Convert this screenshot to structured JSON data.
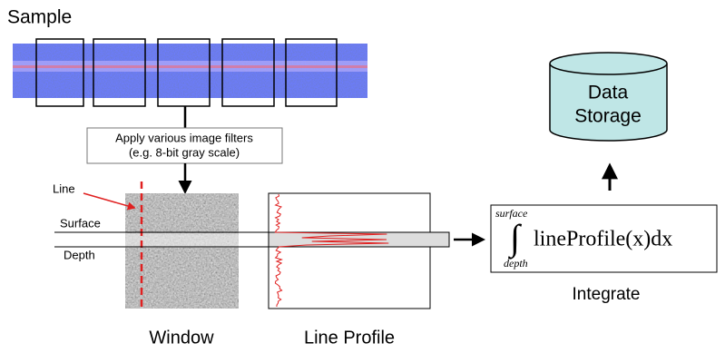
{
  "sample": {
    "title": "Sample"
  },
  "filter_box": {
    "line1": "Apply various image filters",
    "line2": "(e.g. 8-bit gray scale)"
  },
  "window": {
    "line_label": "Line",
    "surface_label": "Surface",
    "depth_label": "Depth",
    "caption": "Window"
  },
  "line_profile": {
    "caption": "Line Profile"
  },
  "formula": {
    "upper": "surface",
    "symbol": "∫",
    "integrand": "lineProfile(x)dx",
    "lower": "depth",
    "caption": "Integrate"
  },
  "storage": {
    "line1": "Data",
    "line2": "Storage"
  }
}
